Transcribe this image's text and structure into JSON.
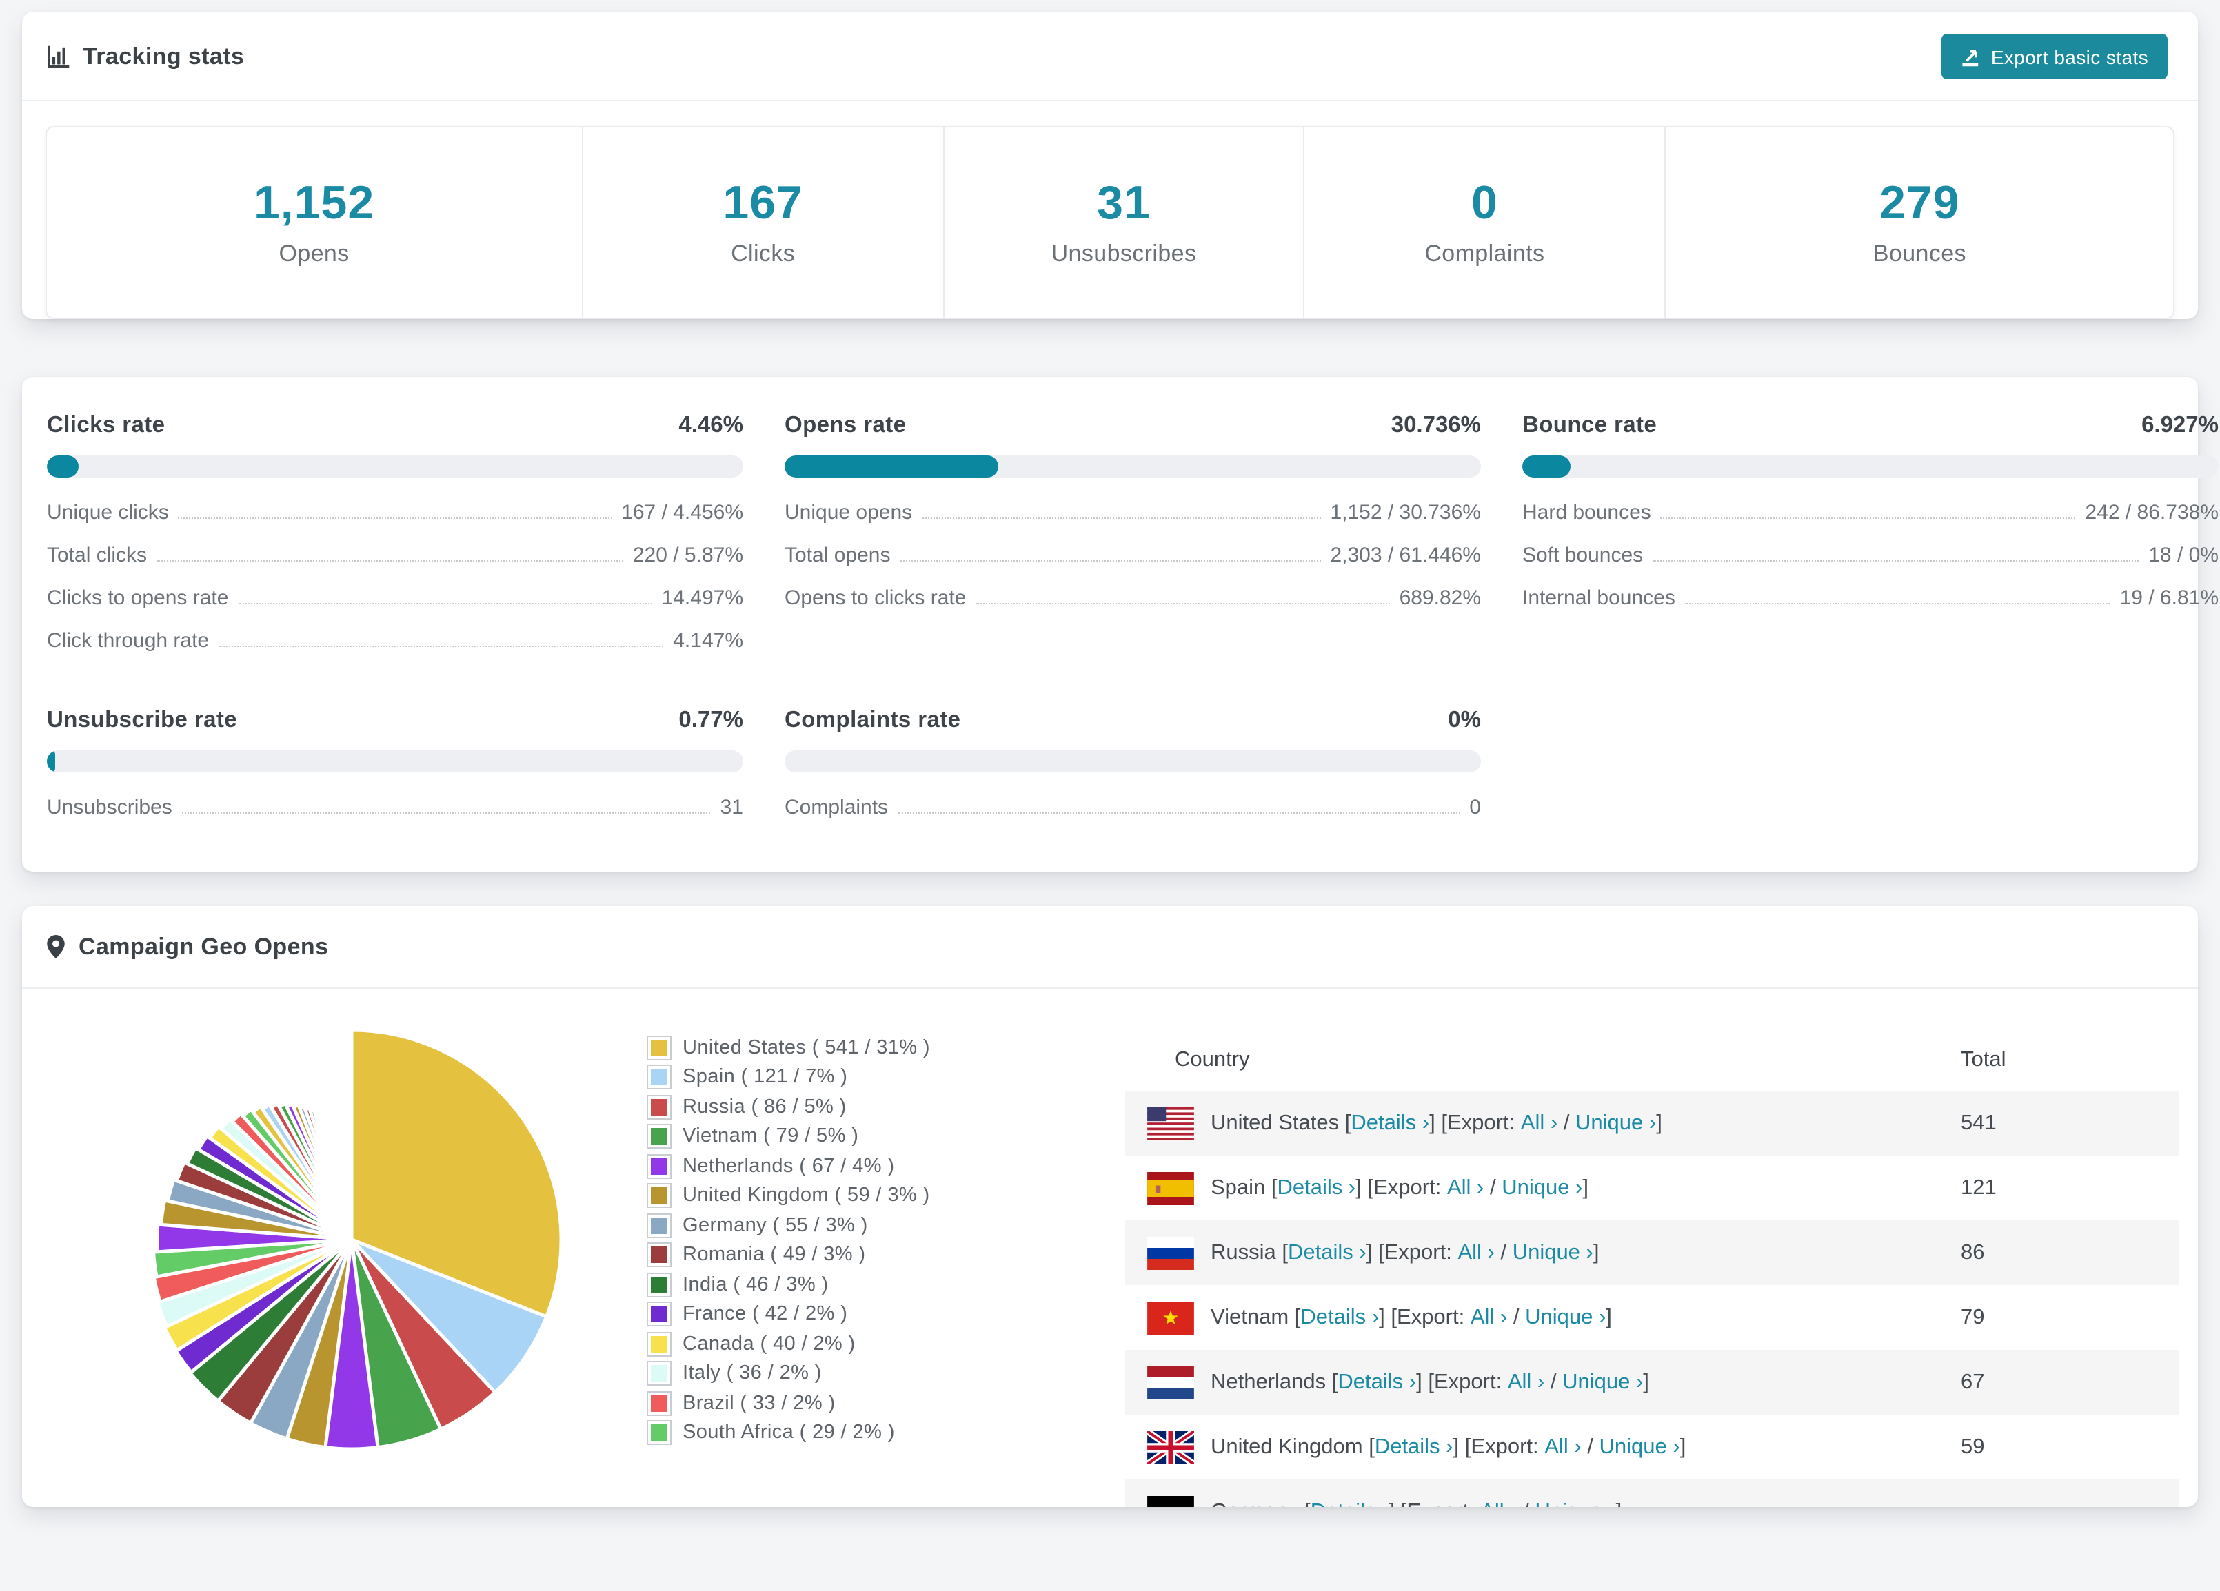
{
  "header": {
    "title": "Tracking stats",
    "export_button": "Export basic stats"
  },
  "stats": [
    {
      "value": "1,152",
      "label": "Opens"
    },
    {
      "value": "167",
      "label": "Clicks"
    },
    {
      "value": "31",
      "label": "Unsubscribes"
    },
    {
      "value": "0",
      "label": "Complaints"
    },
    {
      "value": "279",
      "label": "Bounces"
    }
  ],
  "rates": {
    "clicks_rate": {
      "title": "Clicks rate",
      "value": "4.46%",
      "pct": 4.46,
      "rows": [
        [
          "Unique clicks",
          "167 / 4.456%"
        ],
        [
          "Total clicks",
          "220 / 5.87%"
        ],
        [
          "Clicks to opens rate",
          "14.497%"
        ],
        [
          "Click through rate",
          "4.147%"
        ]
      ]
    },
    "opens_rate": {
      "title": "Opens rate",
      "value": "30.736%",
      "pct": 30.736,
      "rows": [
        [
          "Unique opens",
          "1,152 / 30.736%"
        ],
        [
          "Total opens",
          "2,303 / 61.446%"
        ],
        [
          "Opens to clicks rate",
          "689.82%"
        ]
      ]
    },
    "bounce_rate": {
      "title": "Bounce rate",
      "value": "6.927%",
      "pct": 6.927,
      "rows": [
        [
          "Hard bounces",
          "242 / 86.738%"
        ],
        [
          "Soft bounces",
          "18 / 0%"
        ],
        [
          "Internal bounces",
          "19 / 6.81%"
        ]
      ]
    },
    "unsubscribe_rate": {
      "title": "Unsubscribe rate",
      "value": "0.77%",
      "pct": 0.77,
      "rows": [
        [
          "Unsubscribes",
          "31"
        ]
      ]
    },
    "complaints_rate": {
      "title": "Complaints rate",
      "value": "0%",
      "pct": 0,
      "rows": [
        [
          "Complaints",
          "0"
        ]
      ]
    }
  },
  "geo": {
    "title": "Campaign Geo Opens",
    "table": {
      "country_header": "Country",
      "total_header": "Total",
      "details_label": "Details",
      "export_label": "Export:",
      "all_label": "All",
      "unique_label": "Unique",
      "chevron": "›",
      "bracket_open": "[",
      "bracket_close": "]",
      "slash": "/",
      "rows": [
        {
          "country": "United States",
          "flag": "us",
          "total": "541"
        },
        {
          "country": "Spain",
          "flag": "es",
          "total": "121"
        },
        {
          "country": "Russia",
          "flag": "ru",
          "total": "86"
        },
        {
          "country": "Vietnam",
          "flag": "vn",
          "total": "79"
        },
        {
          "country": "Netherlands",
          "flag": "nl",
          "total": "67"
        },
        {
          "country": "United Kingdom",
          "flag": "gb",
          "total": "59"
        },
        {
          "country": "Germany",
          "flag": "de",
          "total": ""
        }
      ]
    }
  },
  "chart_data": {
    "type": "pie",
    "title": "Campaign Geo Opens",
    "legend_position": "right",
    "series": [
      {
        "label": "United States",
        "value": 541,
        "pct": 31,
        "color": "#e4c13f"
      },
      {
        "label": "Spain",
        "value": 121,
        "pct": 7,
        "color": "#a9d4f5"
      },
      {
        "label": "Russia",
        "value": 86,
        "pct": 5,
        "color": "#c94b4b"
      },
      {
        "label": "Vietnam",
        "value": 79,
        "pct": 5,
        "color": "#47a44d"
      },
      {
        "label": "Netherlands",
        "value": 67,
        "pct": 4,
        "color": "#9238e8"
      },
      {
        "label": "United Kingdom",
        "value": 59,
        "pct": 3,
        "color": "#b8952f"
      },
      {
        "label": "Germany",
        "value": 55,
        "pct": 3,
        "color": "#8aa8c4"
      },
      {
        "label": "Romania",
        "value": 49,
        "pct": 3,
        "color": "#9c3d3d"
      },
      {
        "label": "India",
        "value": 46,
        "pct": 3,
        "color": "#2e7d36"
      },
      {
        "label": "France",
        "value": 42,
        "pct": 2,
        "color": "#6f2bd0"
      },
      {
        "label": "Canada",
        "value": 40,
        "pct": 2,
        "color": "#f7e14d"
      },
      {
        "label": "Italy",
        "value": 36,
        "pct": 2,
        "color": "#dcfaf6"
      },
      {
        "label": "Brazil",
        "value": 33,
        "pct": 2,
        "color": "#f05c5c"
      },
      {
        "label": "South Africa",
        "value": 29,
        "pct": 2,
        "color": "#63cc66"
      }
    ],
    "others_pct": 26
  },
  "colors": {
    "accent": "#1b8aa5",
    "bar_fill": "#0b87a0",
    "bar_track": "#edeff2"
  }
}
